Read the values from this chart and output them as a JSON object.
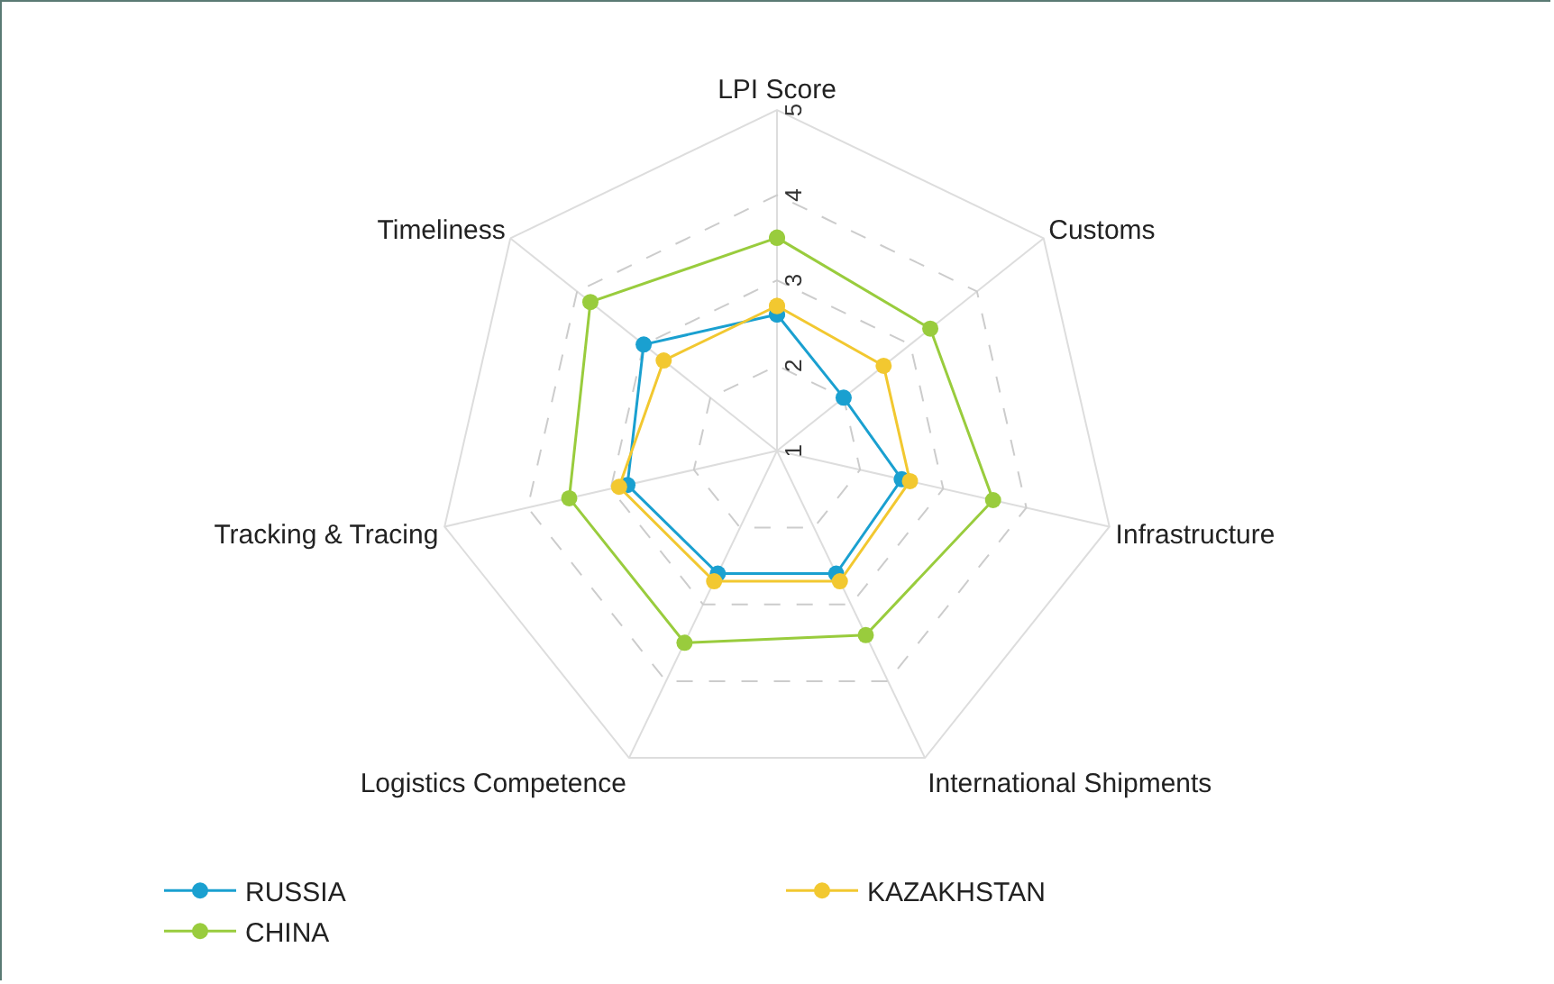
{
  "chart_data": {
    "type": "radar",
    "categories": [
      "LPI Score",
      "Customs",
      "Infrastructure",
      "International Shipments",
      "Logistics Competence",
      "Tracking & Tracing",
      "Timeliness"
    ],
    "series": [
      {
        "name": "RUSSIA",
        "color": "#1aa0d0",
        "values": [
          2.6,
          2.0,
          2.5,
          2.6,
          2.6,
          2.8,
          3.0
        ]
      },
      {
        "name": "KAZAKHSTAN",
        "color": "#f2c830",
        "values": [
          2.7,
          2.6,
          2.6,
          2.7,
          2.7,
          2.9,
          2.7
        ]
      },
      {
        "name": "CHINA",
        "color": "#99cc3d",
        "values": [
          3.5,
          3.3,
          3.6,
          3.4,
          3.5,
          3.5,
          3.8
        ]
      }
    ],
    "ylim": [
      1,
      5
    ],
    "yticks": [
      1,
      2,
      3,
      4,
      5
    ],
    "grid": true,
    "legend": "bottom",
    "marker": "circle",
    "line_style": "solid"
  }
}
